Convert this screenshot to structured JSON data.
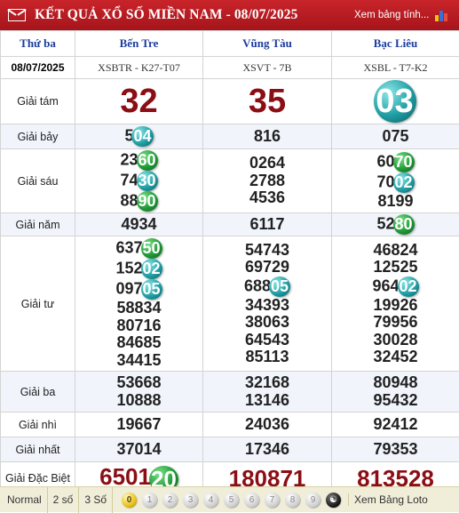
{
  "header": {
    "title": "KẾT QUẢ XỔ SỐ MIỀN NAM - 08/07/2025",
    "view_link": "Xem bảng tính...",
    "icons": [
      "mail-icon",
      "bar-chart-icon"
    ]
  },
  "table": {
    "day_label": "Thứ ba",
    "date": "08/07/2025",
    "provinces": [
      {
        "name": "Bến Tre",
        "code": "XSBTR - K27-T07"
      },
      {
        "name": "Vũng Tàu",
        "code": "XSVT - 7B"
      },
      {
        "name": "Bạc Liêu",
        "code": "XSBL - T7-K2"
      }
    ],
    "prizes": [
      {
        "label": "Giải tám",
        "kind": "big",
        "values": [
          [
            {
              "p": "32"
            }
          ],
          [
            {
              "p": "35"
            }
          ],
          [
            {
              "p": "",
              "b": "03",
              "c": "teal"
            }
          ]
        ]
      },
      {
        "label": "Giải bảy",
        "values": [
          [
            {
              "p": "5",
              "b": "04",
              "c": "teal"
            }
          ],
          [
            {
              "p": "816"
            }
          ],
          [
            {
              "p": "075"
            }
          ]
        ]
      },
      {
        "label": "Giải sáu",
        "values": [
          [
            {
              "p": "23",
              "b": "60",
              "c": "green"
            },
            {
              "p": "74",
              "b": "30",
              "c": "teal"
            },
            {
              "p": "88",
              "b": "90",
              "c": "green"
            }
          ],
          [
            {
              "p": "0264"
            },
            {
              "p": "2788"
            },
            {
              "p": "4536"
            }
          ],
          [
            {
              "p": "60",
              "b": "70",
              "c": "green"
            },
            {
              "p": "70",
              "b": "02",
              "c": "teal"
            },
            {
              "p": "8199"
            }
          ]
        ]
      },
      {
        "label": "Giải năm",
        "values": [
          [
            {
              "p": "4934"
            }
          ],
          [
            {
              "p": "6117"
            }
          ],
          [
            {
              "p": "52",
              "b": "80",
              "c": "green"
            }
          ]
        ]
      },
      {
        "label": "Giải tư",
        "values": [
          [
            {
              "p": "637",
              "b": "50",
              "c": "green"
            },
            {
              "p": "152",
              "b": "02",
              "c": "teal"
            },
            {
              "p": "097",
              "b": "05",
              "c": "teal"
            },
            {
              "p": "58834"
            },
            {
              "p": "80716"
            },
            {
              "p": "84685"
            },
            {
              "p": "34415"
            }
          ],
          [
            {
              "p": "54743"
            },
            {
              "p": "69729"
            },
            {
              "p": "688",
              "b": "05",
              "c": "teal"
            },
            {
              "p": "34393"
            },
            {
              "p": "38063"
            },
            {
              "p": "64543"
            },
            {
              "p": "85113"
            }
          ],
          [
            {
              "p": "46824"
            },
            {
              "p": "12525"
            },
            {
              "p": "964",
              "b": "02",
              "c": "teal"
            },
            {
              "p": "19926"
            },
            {
              "p": "79956"
            },
            {
              "p": "30028"
            },
            {
              "p": "32452"
            }
          ]
        ]
      },
      {
        "label": "Giải ba",
        "values": [
          [
            {
              "p": "53668"
            },
            {
              "p": "10888"
            }
          ],
          [
            {
              "p": "32168"
            },
            {
              "p": "13146"
            }
          ],
          [
            {
              "p": "80948"
            },
            {
              "p": "95432"
            }
          ]
        ]
      },
      {
        "label": "Giải nhì",
        "values": [
          [
            {
              "p": "19667"
            }
          ],
          [
            {
              "p": "24036"
            }
          ],
          [
            {
              "p": "92412"
            }
          ]
        ]
      },
      {
        "label": "Giải nhất",
        "values": [
          [
            {
              "p": "37014"
            }
          ],
          [
            {
              "p": "17346"
            }
          ],
          [
            {
              "p": "79353"
            }
          ]
        ]
      },
      {
        "label": "Giải Đặc Biệt",
        "kind": "db",
        "values": [
          [
            {
              "p": "6501",
              "b": "20",
              "c": "green"
            }
          ],
          [
            {
              "p": "180871"
            }
          ],
          [
            {
              "p": "813528"
            }
          ]
        ]
      }
    ]
  },
  "bottom": {
    "options": [
      "Normal",
      "2 số",
      "3 Số"
    ],
    "digits": [
      "0",
      "1",
      "2",
      "3",
      "4",
      "5",
      "6",
      "7",
      "8",
      "9"
    ],
    "loto_link": "Xem Bảng Loto"
  },
  "colors": {
    "header_red": "#b51c22",
    "province_blue": "#1b3c9e",
    "special_red": "#8b0e14",
    "ball_green": "#1f9a35",
    "ball_teal": "#1f9fa4",
    "bottom_bg": "#f0eed9"
  }
}
